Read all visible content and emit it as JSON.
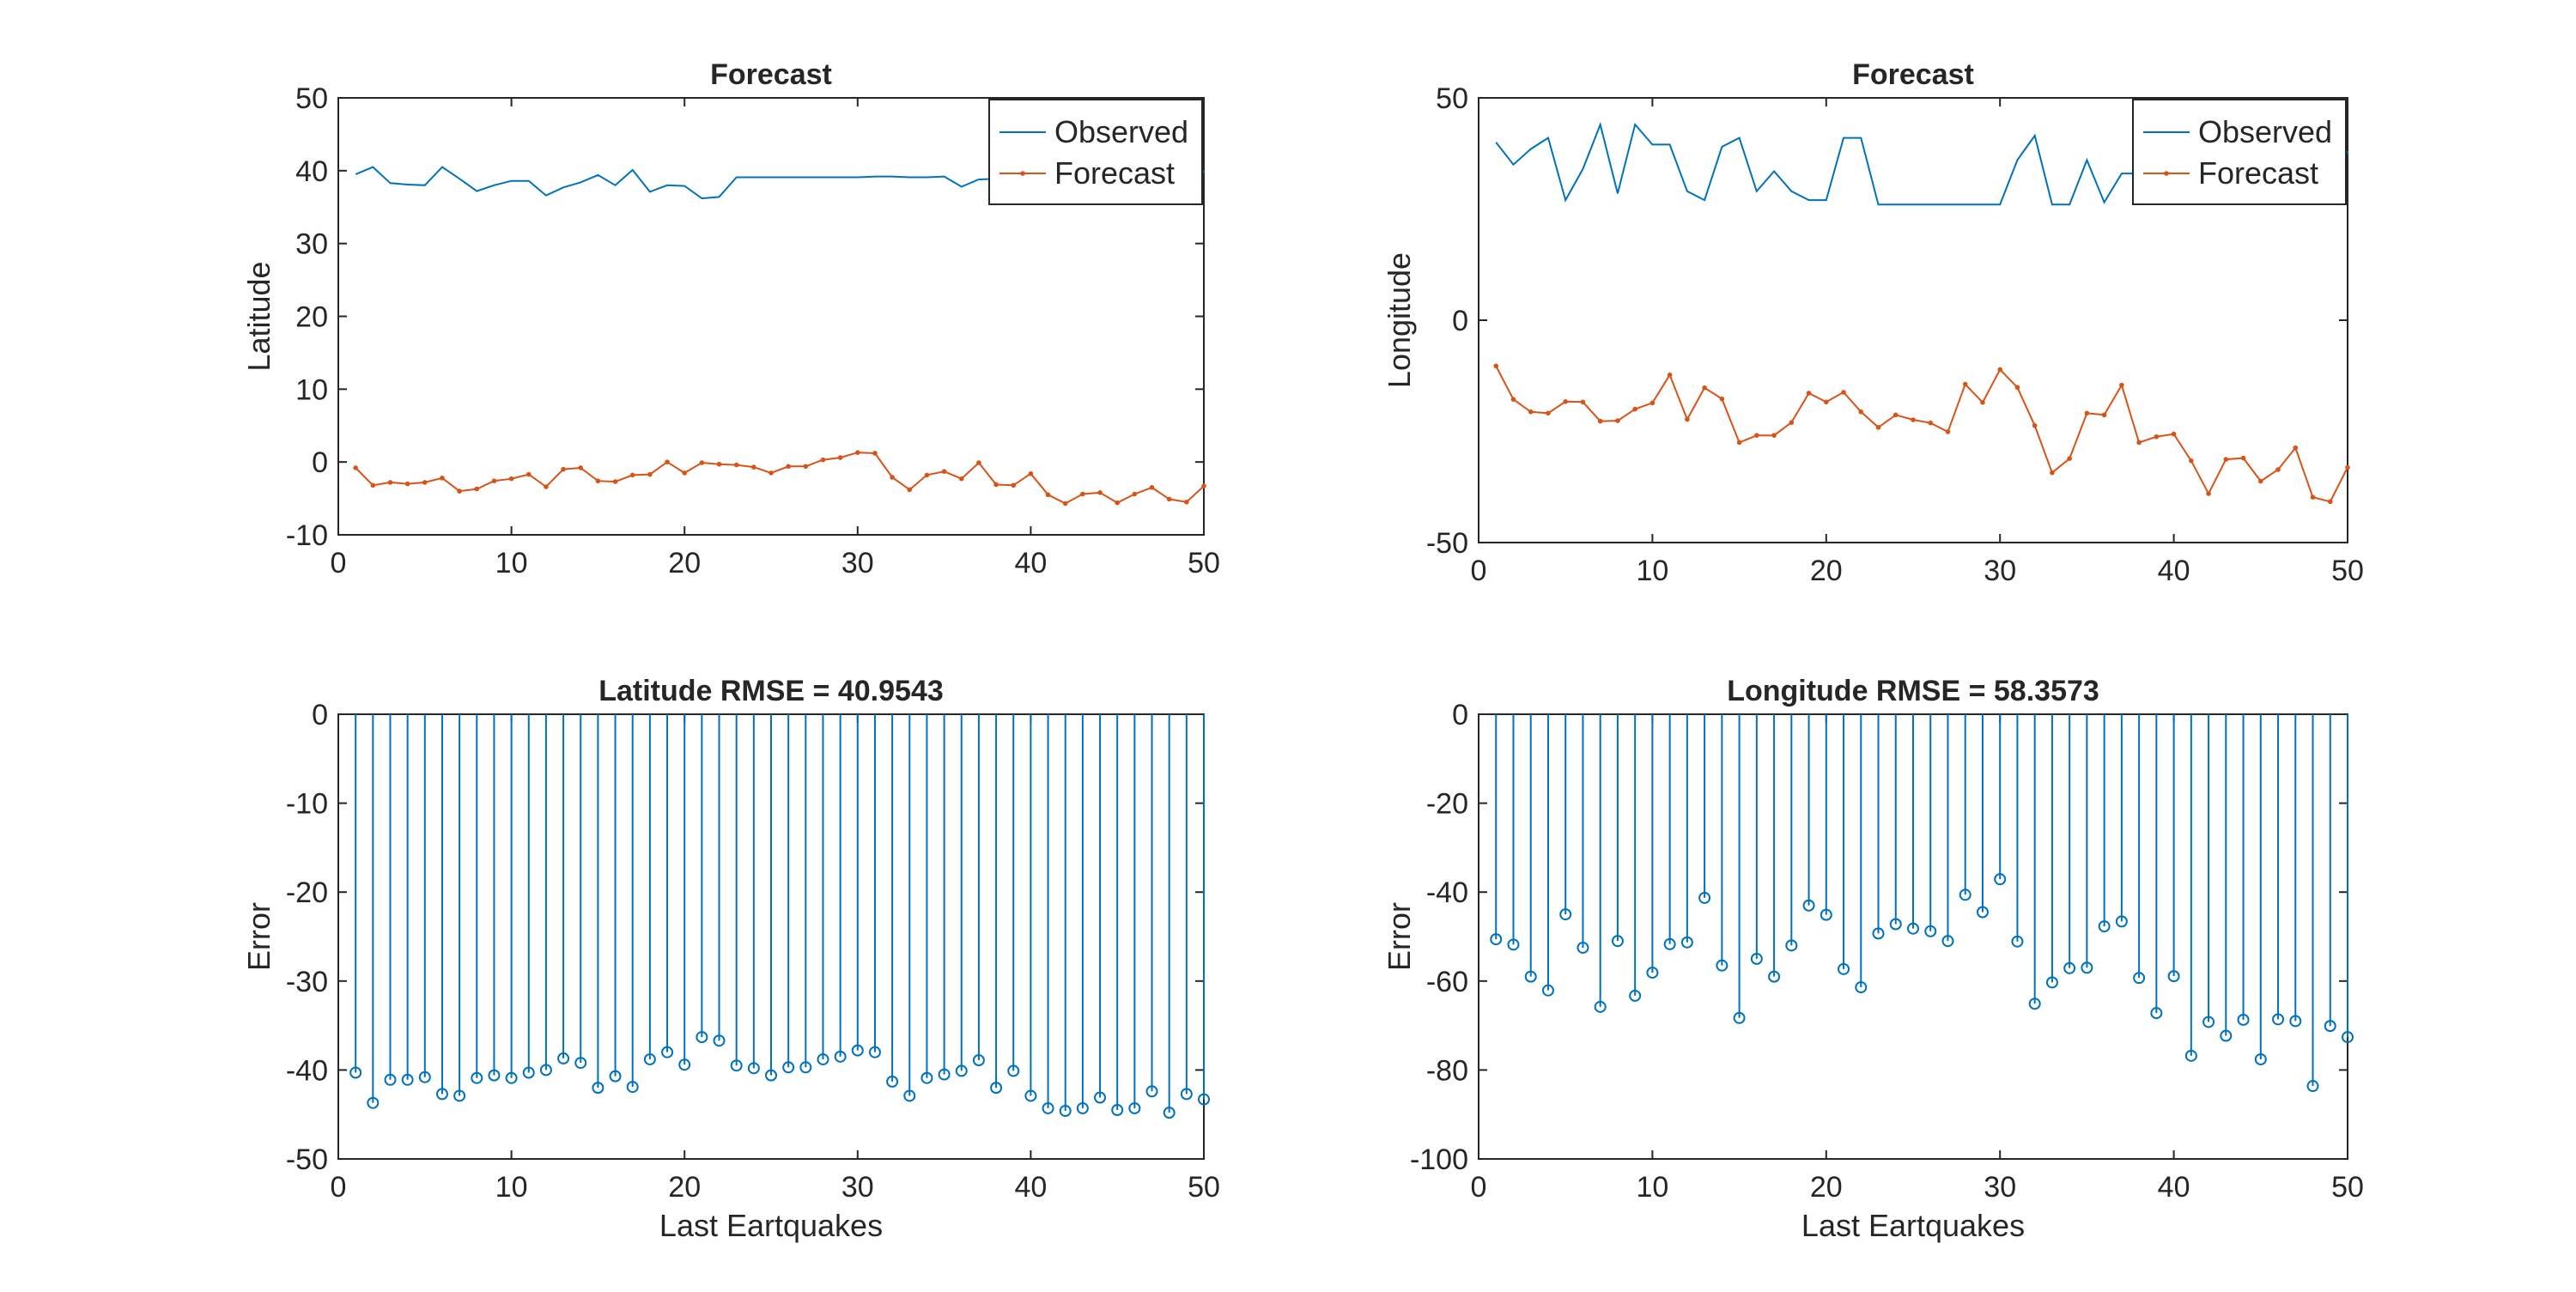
{
  "figure": {
    "colors": {
      "observed": "#0072BD",
      "forecast": "#D95319",
      "axes": "#262626"
    }
  },
  "chart_data": [
    {
      "type": "line",
      "title": "Forecast",
      "xlabel": "",
      "ylabel": "Latitude",
      "xlim": [
        0,
        50
      ],
      "ylim": [
        -10,
        50
      ],
      "xticks": [
        "0",
        "10",
        "20",
        "30",
        "40",
        "50"
      ],
      "yticks": [
        "-10",
        "0",
        "10",
        "20",
        "30",
        "40",
        "50"
      ],
      "legend": {
        "placement": "top-right"
      },
      "grid": false,
      "x": [
        1,
        2,
        3,
        4,
        5,
        6,
        7,
        8,
        9,
        10,
        11,
        12,
        13,
        14,
        15,
        16,
        17,
        18,
        19,
        20,
        21,
        22,
        23,
        24,
        25,
        26,
        27,
        28,
        29,
        30,
        31,
        32,
        33,
        34,
        35,
        36,
        37,
        38,
        39,
        40,
        41,
        42,
        43,
        44,
        45,
        46,
        47,
        48,
        49,
        50
      ],
      "series": [
        {
          "name": "Observed",
          "color": "#0072BD",
          "marker": "none",
          "values": [
            39.5,
            40.5,
            38.3,
            38.1,
            38.0,
            40.5,
            38.9,
            37.2,
            38.0,
            38.6,
            38.6,
            36.6,
            37.7,
            38.4,
            39.4,
            38.0,
            40.1,
            37.1,
            38.0,
            37.9,
            36.2,
            36.4,
            39.1,
            39.1,
            39.1,
            39.1,
            39.1,
            39.1,
            39.1,
            39.1,
            39.2,
            39.2,
            39.1,
            39.1,
            39.2,
            37.8,
            38.8,
            38.9,
            38.9,
            38.9,
            38.9,
            38.9,
            38.9,
            38.9,
            38.9,
            38.9,
            38.9,
            38.9,
            36.1,
            40.0
          ]
        },
        {
          "name": "Forecast",
          "color": "#D95319",
          "marker": "dot",
          "values": [
            -0.8,
            -3.2,
            -2.8,
            -3.0,
            -2.8,
            -2.2,
            -4.0,
            -3.7,
            -2.6,
            -2.3,
            -1.7,
            -3.4,
            -1.0,
            -0.8,
            -2.6,
            -2.7,
            -1.8,
            -1.7,
            0.0,
            -1.5,
            -0.1,
            -0.3,
            -0.4,
            -0.7,
            -1.5,
            -0.6,
            -0.6,
            0.3,
            0.6,
            1.3,
            1.2,
            -2.1,
            -3.8,
            -1.8,
            -1.3,
            -2.3,
            -0.1,
            -3.1,
            -3.2,
            -1.6,
            -4.5,
            -5.7,
            -4.4,
            -4.2,
            -5.6,
            -4.4,
            -3.5,
            -5.1,
            -5.5,
            -3.3
          ]
        }
      ]
    },
    {
      "type": "line",
      "title": "Forecast",
      "xlabel": "",
      "ylabel": "Longitude",
      "xlim": [
        0,
        50
      ],
      "ylim": [
        -50,
        50
      ],
      "xticks": [
        "0",
        "10",
        "20",
        "30",
        "40",
        "50"
      ],
      "yticks": [
        "-50",
        "0",
        "50"
      ],
      "legend": {
        "placement": "top-right"
      },
      "grid": false,
      "x": [
        1,
        2,
        3,
        4,
        5,
        6,
        7,
        8,
        9,
        10,
        11,
        12,
        13,
        14,
        15,
        16,
        17,
        18,
        19,
        20,
        21,
        22,
        23,
        24,
        25,
        26,
        27,
        28,
        29,
        30,
        31,
        32,
        33,
        34,
        35,
        36,
        37,
        38,
        39,
        40,
        41,
        42,
        43,
        44,
        45,
        46,
        47,
        48,
        49,
        50
      ],
      "series": [
        {
          "name": "Observed",
          "color": "#0072BD",
          "marker": "none",
          "values": [
            40,
            35,
            38.5,
            41,
            27,
            34,
            44,
            28.5,
            44,
            39.5,
            39.5,
            29,
            27,
            39,
            41,
            29,
            33.5,
            29,
            27,
            27,
            41,
            41,
            26,
            26,
            26,
            26,
            26,
            26,
            26,
            26,
            36,
            41.5,
            26,
            26,
            36,
            26.5,
            33,
            33,
            33,
            33,
            33,
            33,
            33,
            33,
            33,
            33,
            33,
            33,
            30,
            38
          ]
        },
        {
          "name": "Forecast",
          "color": "#D95319",
          "marker": "dot",
          "values": [
            -10.3,
            -17.8,
            -20.6,
            -20.9,
            -18.3,
            -18.4,
            -22.7,
            -22.6,
            -20.0,
            -18.6,
            -12.3,
            -22.3,
            -15.2,
            -17.7,
            -27.5,
            -25.9,
            -25.9,
            -23.0,
            -16.4,
            -18.4,
            -16.2,
            -20.6,
            -24.1,
            -21.3,
            -22.4,
            -23.1,
            -25.1,
            -14.4,
            -18.5,
            -11.1,
            -15.1,
            -23.7,
            -34.3,
            -31.1,
            -20.9,
            -21.3,
            -14.6,
            -27.5,
            -26.2,
            -25.6,
            -31.6,
            -39.0,
            -31.3,
            -31.0,
            -36.2,
            -33.6,
            -28.7,
            -39.8,
            -40.8,
            -33.1
          ]
        }
      ]
    },
    {
      "type": "stem",
      "title": "Latitude RMSE = 40.9543",
      "xlabel": "Last Eartquakes",
      "ylabel": "Error",
      "xlim": [
        0,
        50
      ],
      "ylim": [
        -50,
        0
      ],
      "xticks": [
        "0",
        "10",
        "20",
        "30",
        "40",
        "50"
      ],
      "yticks": [
        "-50",
        "-40",
        "-30",
        "-20",
        "-10",
        "0"
      ],
      "grid": false,
      "x": [
        1,
        2,
        3,
        4,
        5,
        6,
        7,
        8,
        9,
        10,
        11,
        12,
        13,
        14,
        15,
        16,
        17,
        18,
        19,
        20,
        21,
        22,
        23,
        24,
        25,
        26,
        27,
        28,
        29,
        30,
        31,
        32,
        33,
        34,
        35,
        36,
        37,
        38,
        39,
        40,
        41,
        42,
        43,
        44,
        45,
        46,
        47,
        48,
        49,
        50
      ],
      "series": [
        {
          "color": "#0072BD",
          "marker": "circle",
          "values": [
            -40.3,
            -43.7,
            -41.1,
            -41.1,
            -40.8,
            -42.7,
            -42.9,
            -40.9,
            -40.6,
            -40.9,
            -40.3,
            -40.0,
            -38.7,
            -39.2,
            -42.0,
            -40.7,
            -41.9,
            -38.8,
            -38.0,
            -39.4,
            -36.3,
            -36.7,
            -39.5,
            -39.8,
            -40.6,
            -39.7,
            -39.7,
            -38.8,
            -38.5,
            -37.8,
            -38.0,
            -41.3,
            -42.9,
            -40.9,
            -40.5,
            -40.1,
            -38.9,
            -42.0,
            -40.1,
            -42.9,
            -44.3,
            -44.6,
            -44.3,
            -43.1,
            -44.5,
            -44.3,
            -42.4,
            -44.8,
            -42.7,
            -43.3
          ]
        }
      ]
    },
    {
      "type": "stem",
      "title": "Longitude RMSE = 58.3573",
      "xlabel": "Last Eartquakes",
      "ylabel": "Error",
      "xlim": [
        0,
        50
      ],
      "ylim": [
        -100,
        0
      ],
      "xticks": [
        "0",
        "10",
        "20",
        "30",
        "40",
        "50"
      ],
      "yticks": [
        "-100",
        "-80",
        "-60",
        "-40",
        "-20",
        "0"
      ],
      "grid": false,
      "x": [
        1,
        2,
        3,
        4,
        5,
        6,
        7,
        8,
        9,
        10,
        11,
        12,
        13,
        14,
        15,
        16,
        17,
        18,
        19,
        20,
        21,
        22,
        23,
        24,
        25,
        26,
        27,
        28,
        29,
        30,
        31,
        32,
        33,
        34,
        35,
        36,
        37,
        38,
        39,
        40,
        41,
        42,
        43,
        44,
        45,
        46,
        47,
        48,
        49,
        50
      ],
      "series": [
        {
          "color": "#0072BD",
          "marker": "circle",
          "values": [
            -50.6,
            -51.8,
            -59.0,
            -62.1,
            -45.0,
            -52.5,
            -65.8,
            -51.0,
            -63.3,
            -58.1,
            -51.7,
            -51.3,
            -41.3,
            -56.5,
            -68.3,
            -55.0,
            -59.0,
            -52.0,
            -43.0,
            -45.1,
            -57.3,
            -61.4,
            -49.3,
            -47.2,
            -48.2,
            -48.8,
            -51.0,
            -40.6,
            -44.5,
            -37.1,
            -51.1,
            -65.1,
            -60.3,
            -57.1,
            -57.0,
            -47.7,
            -46.6,
            -59.3,
            -67.2,
            -58.9,
            -76.8,
            -69.2,
            -72.3,
            -68.7,
            -77.6,
            -68.6,
            -69.0,
            -83.6,
            -70.1,
            -72.6
          ]
        }
      ]
    }
  ]
}
